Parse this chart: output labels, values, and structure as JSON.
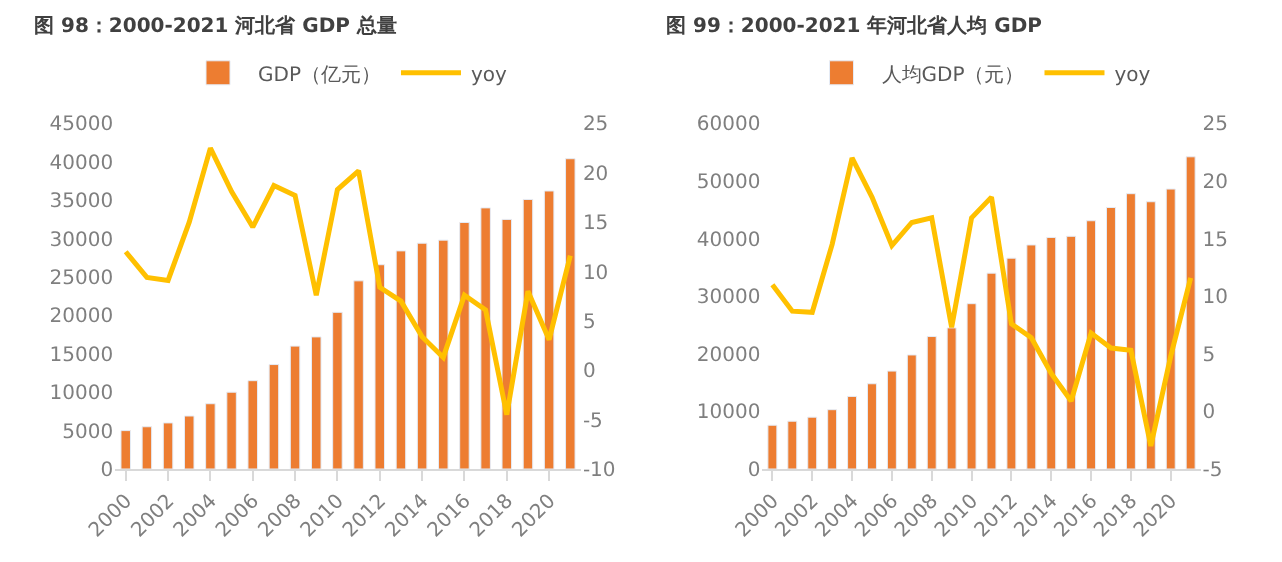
{
  "chart_data": [
    {
      "type": "bar",
      "title": "图 98：2000-2021 河北省 GDP 总量",
      "legend": "top",
      "categories": [
        "2000",
        null,
        "2002",
        null,
        "2004",
        null,
        "2006",
        null,
        "2008",
        null,
        "2010",
        null,
        "2012",
        null,
        "2014",
        null,
        "2016",
        null,
        "2018",
        null,
        "2020",
        null
      ],
      "series": [
        {
          "name": "GDP（亿元）",
          "color": "#ed7d31",
          "values": [
            5000,
            5500,
            6000,
            6900,
            8500,
            10000,
            11500,
            13600,
            16000,
            17200,
            20400,
            24500,
            26600,
            28400,
            29400,
            29800,
            32100,
            34000,
            32500,
            35100,
            36200,
            40400
          ]
        },
        {
          "name": "yoy",
          "type": "line",
          "axis": "y2",
          "color": "#ffc000",
          "values": [
            12,
            9.4,
            9.1,
            15,
            22.5,
            18.1,
            14.5,
            18.7,
            17.7,
            7.6,
            18.3,
            20.2,
            8.4,
            7,
            3.4,
            1.3,
            7.6,
            6.1,
            -4.5,
            8,
            3.1,
            11.6
          ]
        }
      ],
      "ylim": [
        0,
        45000
      ],
      "yticks": [
        0,
        5000,
        10000,
        15000,
        20000,
        25000,
        30000,
        35000,
        40000,
        45000
      ],
      "y2lim": [
        -10,
        25
      ],
      "y2ticks": [
        -10,
        -5,
        0,
        5,
        10,
        15,
        20,
        25
      ]
    },
    {
      "type": "bar",
      "title": "图 99：2000-2021 年河北省人均 GDP",
      "legend": "top",
      "categories": [
        "2000",
        null,
        "2002",
        null,
        "2004",
        null,
        "2006",
        null,
        "2008",
        null,
        "2010",
        null,
        "2012",
        null,
        "2014",
        null,
        "2016",
        null,
        "2018",
        null,
        "2020",
        null
      ],
      "series": [
        {
          "name": "人均GDP（元）",
          "color": "#ed7d31",
          "values": [
            7600,
            8300,
            9000,
            10300,
            12600,
            14800,
            17000,
            19800,
            23000,
            24500,
            28700,
            34000,
            36600,
            38900,
            40200,
            40400,
            43100,
            45400,
            47800,
            46400,
            48600,
            54200
          ]
        },
        {
          "name": "yoy",
          "type": "line",
          "axis": "y2",
          "color": "#ffc000",
          "values": [
            11,
            8.7,
            8.6,
            14.5,
            22,
            18.6,
            14.4,
            16.4,
            16.8,
            7.3,
            16.8,
            18.6,
            7.6,
            6.4,
            3.3,
            0.9,
            6.8,
            5.5,
            5.3,
            -3,
            4.8,
            11.6
          ]
        }
      ],
      "ylim": [
        0,
        60000
      ],
      "yticks": [
        0,
        10000,
        20000,
        30000,
        40000,
        50000,
        60000
      ],
      "y2lim": [
        -5,
        25
      ],
      "y2ticks": [
        -5,
        0,
        5,
        10,
        15,
        20,
        25
      ]
    }
  ]
}
